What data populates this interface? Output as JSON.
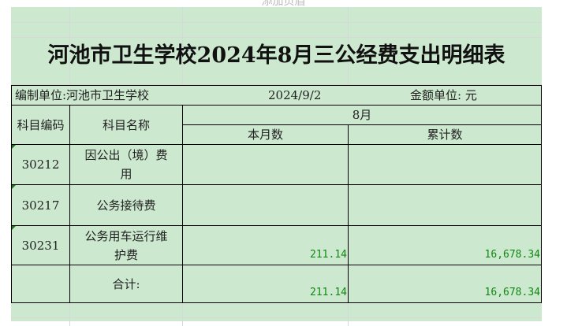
{
  "header_placeholder": "添加页眉",
  "title": "河池市卫生学校2024年8月三公经费支出明细表",
  "info": {
    "unit": "编制单位:河池市卫生学校",
    "date": "2024/9/2",
    "currency": "金额单位: 元"
  },
  "columns": {
    "code": "科目编码",
    "name": "科目名称",
    "month_group": "8月",
    "current": "本月数",
    "cumulative": "累计数"
  },
  "rows": [
    {
      "code": "30212",
      "name": "因公出（境）费用",
      "current": "",
      "cumulative": ""
    },
    {
      "code": "30217",
      "name": "公务接待费",
      "current": "",
      "cumulative": ""
    },
    {
      "code": "30231",
      "name": "公务用车运行维护费",
      "current": "211.14",
      "cumulative": "16,678.34"
    }
  ],
  "total": {
    "label": "合计:",
    "current": "211.14",
    "cumulative": "16,678.34"
  },
  "colors": {
    "cell_bg": "#cce8cf",
    "number_text": "#118811"
  }
}
